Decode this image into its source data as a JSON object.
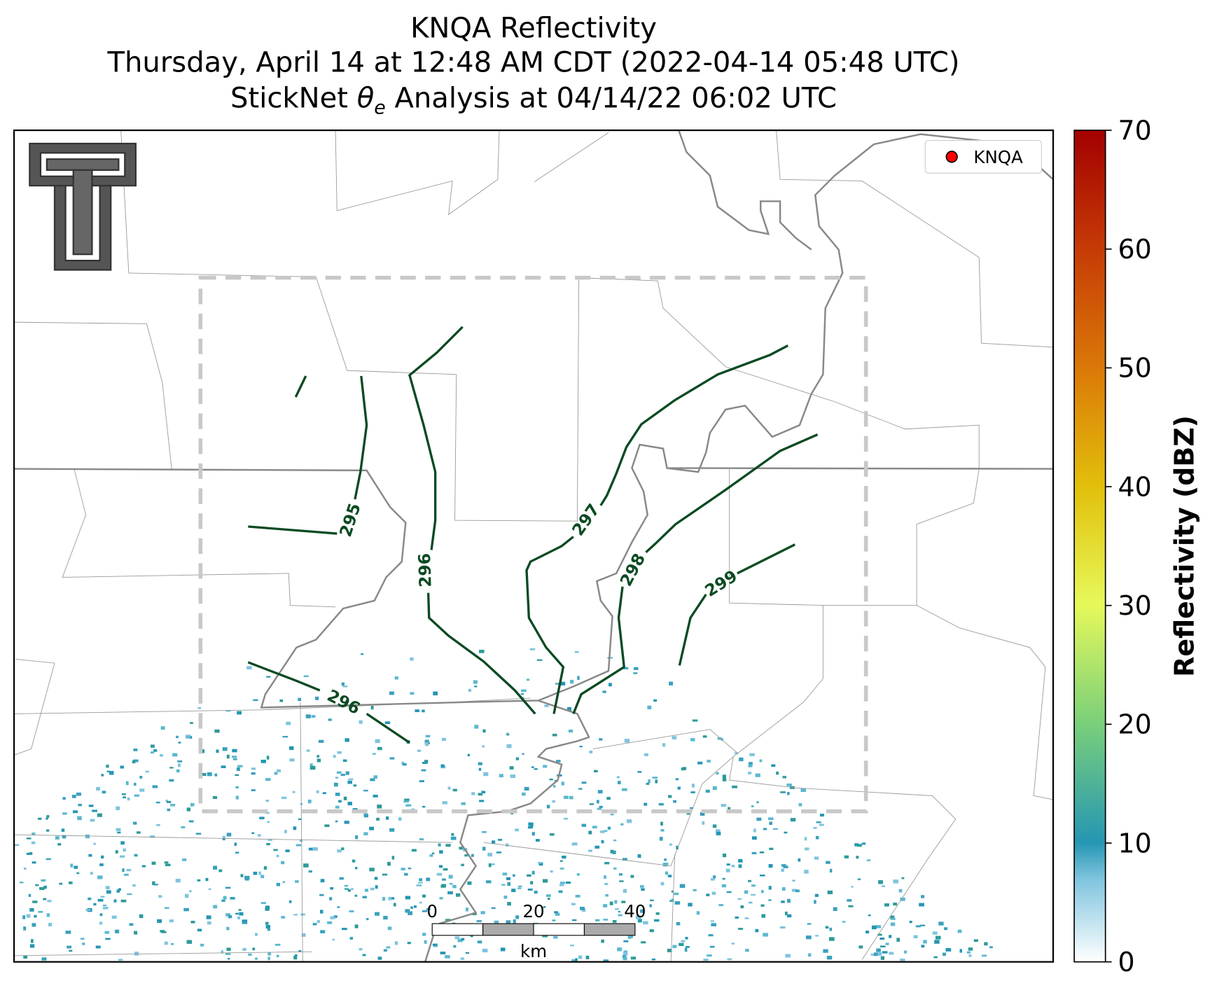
{
  "title_lines": [
    "KNQA Reflectivity",
    "Thursday, April 14 at 12:48 AM CDT (2022-04-14 05:48 UTC)"
  ],
  "subtitle": {
    "prefix": "StickNet ",
    "symbol": "θ",
    "subscript": "e",
    "suffix": " Analysis at 04/14/22 06:02 UTC"
  },
  "legend": {
    "label": "KNQA",
    "color": "#ff0000"
  },
  "contours": [
    295,
    296,
    297,
    298,
    299,
    296
  ],
  "scale_bar": {
    "ticks": [
      0,
      20,
      40
    ],
    "unit": "km"
  },
  "colorbar": {
    "label": "Reflectivity (dBZ)",
    "lim": [
      0,
      70
    ],
    "ticks": [
      0,
      10,
      20,
      30,
      40,
      50,
      60,
      70
    ]
  }
}
